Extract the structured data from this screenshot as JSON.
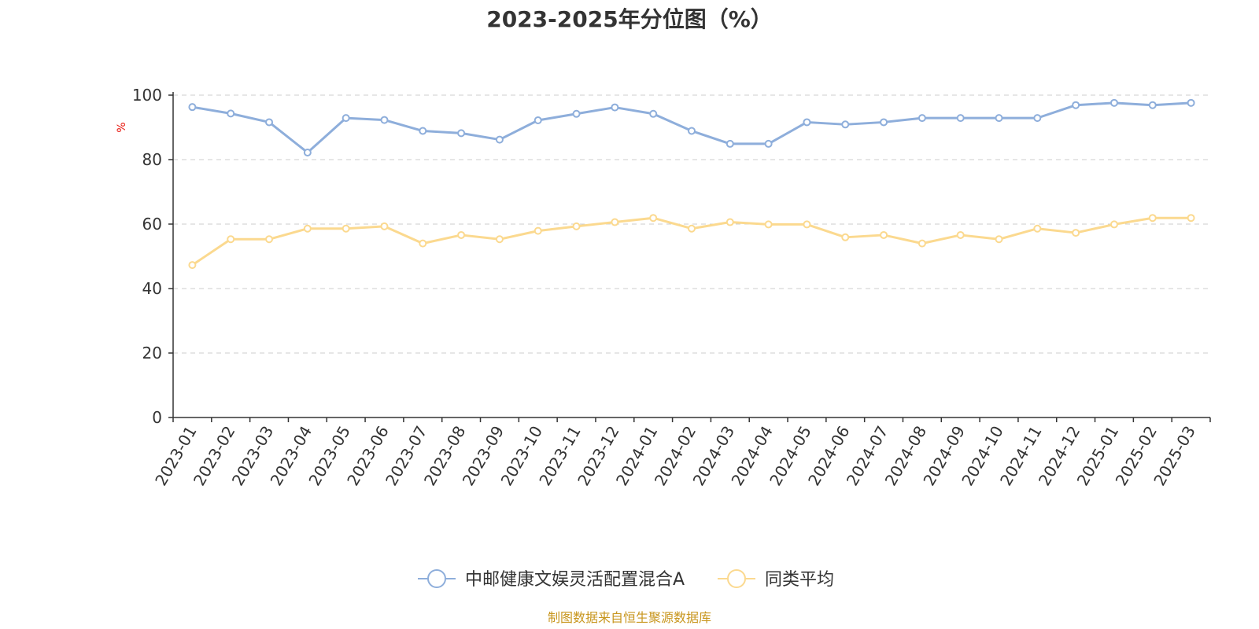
{
  "chart_data": {
    "type": "line",
    "title": "2023-2025年分位图（%）",
    "ylabel": "%",
    "xlabel": "",
    "ylim": [
      0,
      100
    ],
    "yticks": [
      0,
      20,
      40,
      60,
      80,
      100
    ],
    "grid": true,
    "legend_position": "bottom-center",
    "categories": [
      "2023-01",
      "2023-02",
      "2023-03",
      "2023-04",
      "2023-05",
      "2023-06",
      "2023-07",
      "2023-08",
      "2023-09",
      "2023-10",
      "2023-11",
      "2023-12",
      "2024-01",
      "2024-02",
      "2024-03",
      "2024-04",
      "2024-05",
      "2024-06",
      "2024-07",
      "2024-08",
      "2024-09",
      "2024-10",
      "2024-11",
      "2024-12",
      "2025-01",
      "2025-02",
      "2025-03"
    ],
    "series": [
      {
        "name": "中邮健康文娱灵活配置混合A",
        "color": "#8eaedb",
        "values": [
          96.3,
          94.3,
          91.6,
          82.2,
          92.9,
          92.3,
          88.9,
          88.2,
          86.2,
          92.2,
          94.2,
          96.2,
          94.2,
          88.9,
          84.9,
          84.9,
          91.6,
          90.9,
          91.6,
          92.9,
          92.9,
          92.9,
          92.9,
          96.9,
          97.6,
          96.9,
          97.6
        ]
      },
      {
        "name": "同类平均",
        "color": "#fbd98f",
        "values": [
          47.3,
          55.3,
          55.3,
          58.6,
          58.6,
          59.3,
          54.0,
          56.6,
          55.3,
          57.9,
          59.3,
          60.6,
          61.9,
          58.6,
          60.6,
          59.9,
          59.9,
          55.9,
          56.6,
          54.0,
          56.6,
          55.3,
          58.6,
          57.3,
          59.9,
          61.9,
          61.9
        ]
      }
    ]
  },
  "footer": {
    "source_text": "制图数据来自恒生聚源数据库",
    "color": "#c8961e"
  },
  "colors": {
    "axis": "#333333",
    "grid": "#cccccc",
    "ylabel": "#e8130a"
  }
}
